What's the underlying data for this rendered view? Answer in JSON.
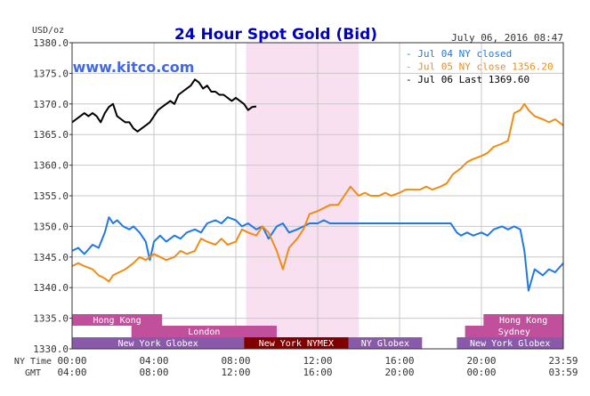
{
  "chart_data": {
    "type": "line",
    "title": "24 Hour Spot Gold (Bid)",
    "watermark": "www.kitco.com",
    "date_label": "July 06, 2016 08:47",
    "y_unit_label": "USD/oz",
    "ylim": [
      1330.0,
      1380.0
    ],
    "y_ticks": [
      "1380.0",
      "1375.0",
      "1370.0",
      "1365.0",
      "1360.0",
      "1355.0",
      "1350.0",
      "1345.0",
      "1340.0",
      "1335.0",
      "1330.0"
    ],
    "y_tick_values": [
      1380,
      1375,
      1370,
      1365,
      1360,
      1355,
      1350,
      1345,
      1340,
      1335,
      1330
    ],
    "xlim": [
      0,
      24
    ],
    "x_row_labels": {
      "ny": "NY Time",
      "gmt": "GMT"
    },
    "x_ticks_ny": [
      "00:00",
      "04:00",
      "08:00",
      "12:00",
      "16:00",
      "20:00",
      "23:59"
    ],
    "x_ticks_gmt": [
      "04:00",
      "08:00",
      "12:00",
      "16:00",
      "20:00",
      "00:00",
      "03:59"
    ],
    "x_tick_values": [
      0,
      4,
      8,
      12,
      16,
      20,
      24
    ],
    "shaded_region": {
      "from": 8.5,
      "to": 14.0,
      "color": "#f8e0f0"
    },
    "series": [
      {
        "name": "Jul 04 NY closed",
        "color": "#1e78e6",
        "x": [
          0,
          0.3,
          0.6,
          1.0,
          1.3,
          1.6,
          1.8,
          2.0,
          2.2,
          2.5,
          2.8,
          3.0,
          3.3,
          3.6,
          3.8,
          4.0,
          4.3,
          4.6,
          5.0,
          5.3,
          5.6,
          6.0,
          6.3,
          6.6,
          7.0,
          7.3,
          7.6,
          8.0,
          8.3,
          8.6,
          9.0,
          9.3,
          9.6,
          10.0,
          10.3,
          10.6,
          11.0,
          11.3,
          11.6,
          12.0,
          12.3,
          12.6,
          13.0,
          13.3,
          13.6,
          14.0,
          15.0,
          16.0,
          17.0,
          18.0,
          18.5,
          18.8,
          19.0,
          19.3,
          19.6,
          20.0,
          20.3,
          20.6,
          21.0,
          21.3,
          21.6,
          21.9,
          22.1,
          22.3,
          22.6,
          23.0,
          23.3,
          23.6,
          24.0
        ],
        "y": [
          1346.0,
          1346.5,
          1345.5,
          1347.0,
          1346.5,
          1349.0,
          1351.5,
          1350.5,
          1351.0,
          1350.0,
          1349.5,
          1350.0,
          1349.0,
          1347.5,
          1344.5,
          1347.5,
          1348.5,
          1347.5,
          1348.5,
          1348.0,
          1349.0,
          1349.5,
          1349.0,
          1350.5,
          1351.0,
          1350.5,
          1351.5,
          1351.0,
          1350.0,
          1350.5,
          1349.5,
          1350.0,
          1348.0,
          1350.0,
          1350.5,
          1349.0,
          1349.5,
          1350.0,
          1350.5,
          1350.5,
          1351.0,
          1350.5,
          1350.5,
          1350.5,
          1350.5,
          1350.5,
          1350.5,
          1350.5,
          1350.5,
          1350.5,
          1350.5,
          1349.0,
          1348.5,
          1349.0,
          1348.5,
          1349.0,
          1348.5,
          1349.5,
          1350.0,
          1349.5,
          1350.0,
          1349.5,
          1346.0,
          1339.5,
          1343.0,
          1342.0,
          1343.0,
          1342.5,
          1344.0
        ]
      },
      {
        "name": "Jul 05 NY close 1356.20",
        "color": "#f08c14",
        "x": [
          0,
          0.3,
          0.6,
          1.0,
          1.3,
          1.6,
          1.8,
          2.0,
          2.3,
          2.6,
          3.0,
          3.3,
          3.6,
          4.0,
          4.3,
          4.6,
          5.0,
          5.3,
          5.6,
          6.0,
          6.3,
          6.6,
          7.0,
          7.3,
          7.6,
          8.0,
          8.3,
          8.6,
          9.0,
          9.3,
          9.6,
          10.0,
          10.3,
          10.6,
          11.0,
          11.3,
          11.6,
          12.0,
          12.3,
          12.6,
          13.0,
          13.3,
          13.6,
          14.0,
          14.3,
          14.6,
          15.0,
          15.3,
          15.6,
          16.0,
          16.3,
          16.6,
          17.0,
          17.3,
          17.6,
          18.0,
          18.3,
          18.6,
          19.0,
          19.3,
          19.6,
          20.0,
          20.3,
          20.6,
          21.0,
          21.3,
          21.6,
          21.9,
          22.1,
          22.3,
          22.6,
          23.0,
          23.3,
          23.6,
          24.0
        ],
        "y": [
          1343.5,
          1344.0,
          1343.5,
          1343.0,
          1342.0,
          1341.5,
          1341.0,
          1342.0,
          1342.5,
          1343.0,
          1344.0,
          1345.0,
          1344.5,
          1345.5,
          1345.0,
          1344.5,
          1345.0,
          1346.0,
          1345.5,
          1346.0,
          1348.0,
          1347.5,
          1347.0,
          1348.0,
          1347.0,
          1347.5,
          1349.5,
          1349.0,
          1348.5,
          1350.0,
          1349.0,
          1346.0,
          1343.0,
          1346.5,
          1348.0,
          1349.5,
          1352.0,
          1352.5,
          1353.0,
          1353.5,
          1353.5,
          1355.0,
          1356.5,
          1355.0,
          1355.5,
          1355.0,
          1355.0,
          1355.5,
          1355.0,
          1355.5,
          1356.0,
          1356.0,
          1356.0,
          1356.5,
          1356.0,
          1356.5,
          1357.0,
          1358.5,
          1359.5,
          1360.5,
          1361.0,
          1361.5,
          1362.0,
          1363.0,
          1363.5,
          1364.0,
          1368.5,
          1369.0,
          1370.0,
          1369.0,
          1368.0,
          1367.5,
          1367.0,
          1367.5,
          1366.5
        ]
      },
      {
        "name": "Jul 06 Last 1369.60",
        "color": "#000000",
        "x": [
          0,
          0.2,
          0.4,
          0.6,
          0.8,
          1.0,
          1.2,
          1.4,
          1.6,
          1.8,
          2.0,
          2.2,
          2.4,
          2.6,
          2.8,
          3.0,
          3.2,
          3.4,
          3.6,
          3.8,
          4.0,
          4.2,
          4.4,
          4.6,
          4.8,
          5.0,
          5.2,
          5.4,
          5.6,
          5.8,
          6.0,
          6.2,
          6.4,
          6.6,
          6.8,
          7.0,
          7.2,
          7.4,
          7.6,
          7.8,
          8.0,
          8.2,
          8.4,
          8.6,
          8.8,
          9.0
        ],
        "y": [
          1367.0,
          1367.5,
          1368.0,
          1368.5,
          1368.0,
          1368.5,
          1368.0,
          1367.0,
          1368.5,
          1369.5,
          1370.0,
          1368.0,
          1367.5,
          1367.0,
          1367.0,
          1366.0,
          1365.5,
          1366.0,
          1366.5,
          1367.0,
          1368.0,
          1369.0,
          1369.5,
          1370.0,
          1370.5,
          1370.0,
          1371.5,
          1372.0,
          1372.5,
          1373.0,
          1374.0,
          1373.5,
          1372.5,
          1373.0,
          1372.0,
          1372.0,
          1371.5,
          1371.5,
          1371.0,
          1370.5,
          1371.0,
          1370.5,
          1370.0,
          1369.0,
          1369.5,
          1369.6
        ]
      }
    ],
    "sessions": [
      {
        "label": "Hong Kong",
        "from": 0.0,
        "to": 4.4,
        "row": 0,
        "color": "#c0509c"
      },
      {
        "label": "London",
        "from": 2.9,
        "to": 10.0,
        "row": 1,
        "color": "#c0509c"
      },
      {
        "label": "New York Globex",
        "from": 0.0,
        "to": 8.4,
        "row": 2,
        "color": "#8a5aaa"
      },
      {
        "label": "New York NYMEX",
        "from": 8.4,
        "to": 13.5,
        "row": 2,
        "color": "#800000"
      },
      {
        "label": "NY Globex",
        "from": 13.5,
        "to": 17.1,
        "row": 2,
        "color": "#8a5aaa"
      },
      {
        "label": "Hong Kong",
        "from": 20.1,
        "to": 24.0,
        "row": 0,
        "color": "#c0509c"
      },
      {
        "label": "Sydney",
        "from": 19.2,
        "to": 24.0,
        "row": 1,
        "color": "#c0509c"
      },
      {
        "label": "New York Globex",
        "from": 18.8,
        "to": 24.0,
        "row": 2,
        "color": "#8a5aaa"
      }
    ],
    "grid": true,
    "legend_position": "top-right"
  }
}
